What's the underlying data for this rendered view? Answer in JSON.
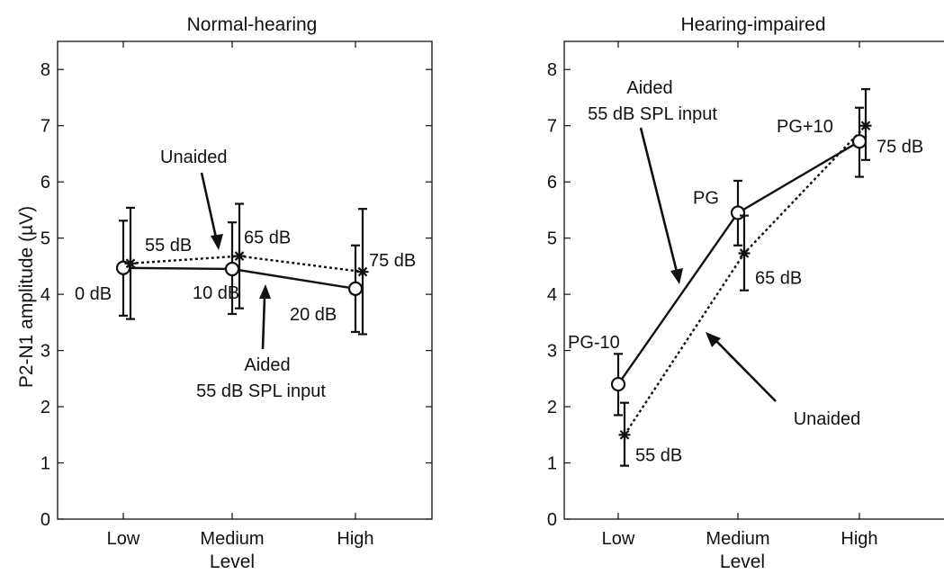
{
  "chart_data": [
    {
      "type": "line",
      "title": "Normal-hearing",
      "xlabel": "Level",
      "ylabel": "P2-N1 amplitude (µV)",
      "categories": [
        "Low",
        "Medium",
        "High"
      ],
      "ylim": [
        0,
        8.5
      ],
      "yticks": [
        0,
        1,
        2,
        3,
        4,
        5,
        6,
        7,
        8
      ],
      "grid": false,
      "series": [
        {
          "name": "Aided 55 dB SPL input",
          "marker": "circle",
          "line_style": "solid",
          "values": [
            4.47,
            4.45,
            4.1
          ],
          "err_low": [
            3.62,
            3.65,
            3.33
          ],
          "err_high": [
            5.31,
            5.28,
            4.87
          ],
          "point_labels": [
            "0 dB",
            "10 dB",
            "20 dB"
          ]
        },
        {
          "name": "Unaided",
          "marker": "star",
          "line_style": "dotted",
          "values": [
            4.55,
            4.68,
            4.4
          ],
          "err_low": [
            3.56,
            3.75,
            3.29
          ],
          "err_high": [
            5.54,
            5.61,
            5.52
          ],
          "point_labels": [
            "55 dB",
            "65 dB",
            "75 dB"
          ]
        }
      ],
      "annotations": {
        "unaided": "Unaided",
        "aided_line1": "Aided",
        "aided_line2": "55 dB SPL input"
      }
    },
    {
      "type": "line",
      "title": "Hearing-impaired",
      "xlabel": "Level",
      "ylabel": "",
      "categories": [
        "Low",
        "Medium",
        "High"
      ],
      "ylim": [
        0,
        8.5
      ],
      "yticks": [
        0,
        1,
        2,
        3,
        4,
        5,
        6,
        7,
        8
      ],
      "grid": false,
      "series": [
        {
          "name": "Aided 55 dB SPL input",
          "marker": "circle",
          "line_style": "solid",
          "values": [
            2.4,
            5.45,
            6.72
          ],
          "err_low": [
            1.85,
            4.87,
            6.09
          ],
          "err_high": [
            2.94,
            6.02,
            7.32
          ],
          "point_labels": [
            "PG-10",
            "PG",
            "PG+10"
          ]
        },
        {
          "name": "Unaided",
          "marker": "star",
          "line_style": "dotted",
          "values": [
            1.5,
            4.73,
            7.0
          ],
          "err_low": [
            0.95,
            4.07,
            6.39
          ],
          "err_high": [
            2.07,
            5.4,
            7.65
          ],
          "point_labels": [
            "55 dB",
            "65 dB",
            "75 dB"
          ]
        }
      ],
      "annotations": {
        "unaided": "Unaided",
        "aided_line1": "Aided",
        "aided_line2": "55 dB SPL input"
      }
    }
  ]
}
